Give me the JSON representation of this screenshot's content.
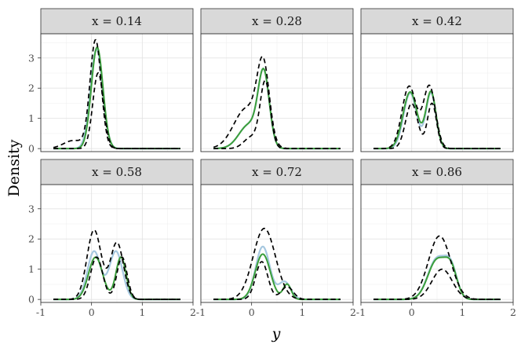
{
  "chart_data": {
    "type": "line",
    "xlabel": "y",
    "ylabel": "Density",
    "xlim": [
      -1,
      2
    ],
    "ylim": [
      -0.1,
      3.8
    ],
    "xticks": [
      -1,
      0,
      1,
      2
    ],
    "yticks": [
      0,
      1,
      2,
      3
    ],
    "grid": true,
    "series_colors": {
      "truth": "#a6c8e0",
      "estimate": "#3a9e3a",
      "band": "#000000"
    },
    "panels": [
      {
        "label": "x = 0.14",
        "truth": {
          "components": [
            [
              1.0,
              0.1,
              0.12
            ]
          ],
          "amp": 3.3
        },
        "estimate": {
          "components": [
            [
              1.0,
              0.11,
              0.115
            ]
          ],
          "amp": 3.35
        },
        "upper": {
          "components": [
            [
              0.93,
              0.08,
              0.11
            ],
            [
              0.07,
              -0.35,
              0.2
            ]
          ],
          "amp": 3.6
        },
        "lower": {
          "components": [
            [
              1.0,
              0.13,
              0.105
            ]
          ],
          "amp": 2.5
        }
      },
      {
        "label": "x = 0.28",
        "truth": {
          "components": [
            [
              0.75,
              0.24,
              0.11
            ],
            [
              0.25,
              -0.05,
              0.2
            ]
          ],
          "amp": 2.65
        },
        "estimate": {
          "components": [
            [
              0.75,
              0.24,
              0.11
            ],
            [
              0.25,
              -0.05,
              0.2
            ]
          ],
          "amp": 2.65
        },
        "upper": {
          "components": [
            [
              0.65,
              0.23,
              0.12
            ],
            [
              0.35,
              -0.1,
              0.25
            ]
          ],
          "amp": 3.05
        },
        "lower": {
          "components": [
            [
              0.85,
              0.27,
              0.1
            ],
            [
              0.15,
              0.0,
              0.15
            ]
          ],
          "amp": 2.25
        }
      },
      {
        "label": "x = 0.42",
        "truth": {
          "components": [
            [
              0.5,
              -0.03,
              0.13
            ],
            [
              0.5,
              0.38,
              0.1
            ]
          ],
          "amp": 1.85
        },
        "estimate": {
          "components": [
            [
              0.5,
              -0.03,
              0.14
            ],
            [
              0.5,
              0.38,
              0.1
            ]
          ],
          "amp": 1.9
        },
        "upper": {
          "components": [
            [
              0.5,
              -0.05,
              0.14
            ],
            [
              0.5,
              0.35,
              0.12
            ]
          ],
          "amp": 2.1
        },
        "lower": {
          "components": [
            [
              0.5,
              0.0,
              0.12
            ],
            [
              0.5,
              0.4,
              0.09
            ]
          ],
          "amp": 1.5
        }
      },
      {
        "label": "x = 0.58",
        "truth": {
          "components": [
            [
              0.5,
              0.05,
              0.13
            ],
            [
              0.5,
              0.48,
              0.13
            ]
          ],
          "amp": 1.6
        },
        "estimate": {
          "components": [
            [
              0.5,
              0.08,
              0.14
            ],
            [
              0.5,
              0.58,
              0.1
            ]
          ],
          "amp": 1.4
        },
        "upper": {
          "components": [
            [
              0.55,
              0.05,
              0.14
            ],
            [
              0.45,
              0.5,
              0.13
            ]
          ],
          "amp": 2.3
        },
        "lower": {
          "components": [
            [
              0.5,
              0.1,
              0.12
            ],
            [
              0.5,
              0.6,
              0.1
            ]
          ],
          "amp": 1.4
        }
      },
      {
        "label": "x = 0.72",
        "truth": {
          "components": [
            [
              0.75,
              0.22,
              0.14
            ],
            [
              0.25,
              0.65,
              0.12
            ]
          ],
          "amp": 1.75
        },
        "estimate": {
          "components": [
            [
              0.75,
              0.22,
              0.15
            ],
            [
              0.25,
              0.7,
              0.08
            ]
          ],
          "amp": 1.5
        },
        "upper": {
          "components": [
            [
              1.0,
              0.25,
              0.22
            ]
          ],
          "amp": 2.35
        },
        "lower": {
          "components": [
            [
              0.75,
              0.2,
              0.12
            ],
            [
              0.25,
              0.7,
              0.12
            ]
          ],
          "amp": 1.25
        }
      },
      {
        "label": "x = 0.86",
        "truth": {
          "components": [
            [
              0.6,
              0.5,
              0.18
            ],
            [
              0.4,
              0.78,
              0.12
            ]
          ],
          "amp": 1.45
        },
        "estimate": {
          "components": [
            [
              0.6,
              0.5,
              0.18
            ],
            [
              0.4,
              0.78,
              0.12
            ]
          ],
          "amp": 1.4
        },
        "upper": {
          "components": [
            [
              1.0,
              0.55,
              0.22
            ]
          ],
          "amp": 2.1
        },
        "lower": {
          "components": [
            [
              1.0,
              0.6,
              0.2
            ]
          ],
          "amp": 1.0
        }
      }
    ]
  }
}
